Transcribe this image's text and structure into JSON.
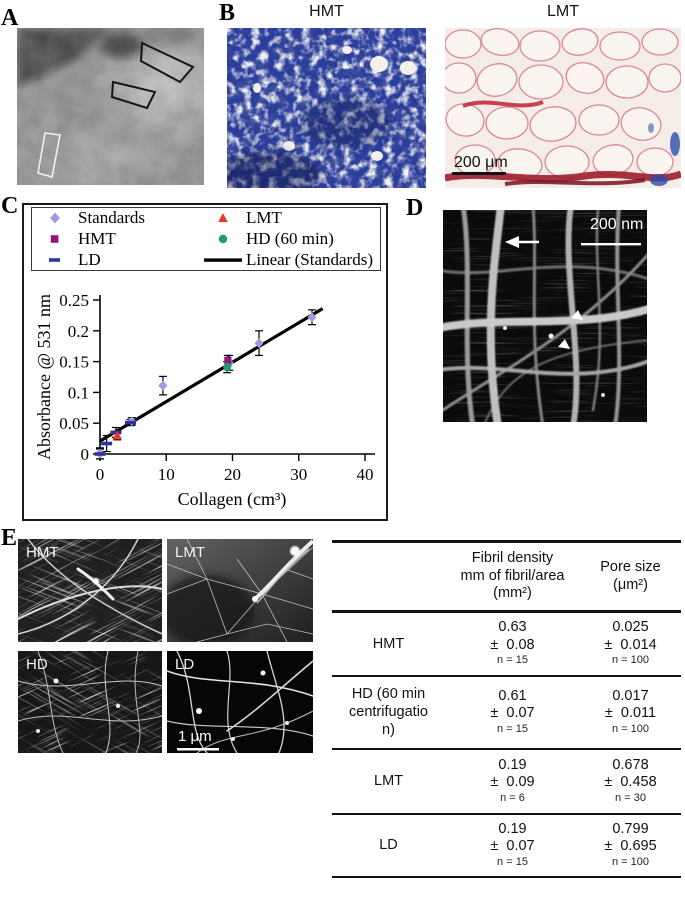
{
  "panels": {
    "a": {
      "label": "A"
    },
    "b": {
      "label": "B",
      "left_title": "HMT",
      "right_title": "LMT",
      "scale_bar": "200 μm"
    },
    "c": {
      "label": "C"
    },
    "d": {
      "label": "D",
      "scale_bar": "200 nm"
    },
    "e": {
      "label": "E",
      "tiles": [
        {
          "label": "HMT"
        },
        {
          "label": "LMT"
        },
        {
          "label": "HD"
        },
        {
          "label": "LD"
        }
      ],
      "scale_bar": "1 μm"
    }
  },
  "chart_data": {
    "type": "scatter",
    "title": "",
    "xlabel": "Collagen (cm³)",
    "ylabel": "Absorbance @ 531 nm",
    "xlim": [
      0,
      40
    ],
    "ylim": [
      0,
      0.25
    ],
    "xticks": [
      "0",
      "10",
      "20",
      "30",
      "40"
    ],
    "yticks": [
      "0",
      "0.05",
      "0.1",
      "0.15",
      "0.2",
      "0.25"
    ],
    "grid": false,
    "legend_position": "top",
    "legend": [
      {
        "name": "Standards",
        "marker": "diamond",
        "color": "#9b9bdf"
      },
      {
        "name": "HMT",
        "marker": "square",
        "color": "#8f1677"
      },
      {
        "name": "LD",
        "marker": "dash",
        "color": "#32329b"
      },
      {
        "name": "LMT",
        "marker": "triangle",
        "color": "#e6392e"
      },
      {
        "name": "HD (60 min)",
        "marker": "circle",
        "color": "#1f9c6e"
      },
      {
        "name": "Linear (Standards)",
        "marker": "line",
        "color": "#000000"
      }
    ],
    "series": [
      {
        "name": "Standards",
        "marker": "diamond",
        "color": "#9b9bdf",
        "points": [
          {
            "x": 0,
            "y": 0.001,
            "err": 0.009
          },
          {
            "x": 4.8,
            "y": 0.053,
            "err": 0.006
          },
          {
            "x": 9.5,
            "y": 0.111,
            "err": 0.015
          },
          {
            "x": 19.5,
            "y": 0.148,
            "err": 0.012
          },
          {
            "x": 24,
            "y": 0.18,
            "err": 0.02
          },
          {
            "x": 32,
            "y": 0.222,
            "err": 0.012
          }
        ]
      },
      {
        "name": "HMT",
        "marker": "square",
        "color": "#8f1677",
        "points": [
          {
            "x": 19.3,
            "y": 0.152,
            "err": 0.008
          }
        ]
      },
      {
        "name": "LD",
        "marker": "dash",
        "color": "#32329b",
        "points": [
          {
            "x": 0,
            "y": 0.0,
            "err": 0.008
          },
          {
            "x": 1,
            "y": 0.017,
            "err": 0.013
          },
          {
            "x": 2.4,
            "y": 0.035,
            "err": 0.008
          },
          {
            "x": 4.6,
            "y": 0.051,
            "err": 0.005
          }
        ]
      },
      {
        "name": "LMT",
        "marker": "triangle",
        "color": "#e6392e",
        "points": [
          {
            "x": 2.6,
            "y": 0.03,
            "err": 0.007
          }
        ]
      },
      {
        "name": "HD (60 min)",
        "marker": "circle",
        "color": "#1f9c6e",
        "points": [
          {
            "x": 19.2,
            "y": 0.141,
            "err": 0.009
          }
        ]
      }
    ],
    "fit_line": {
      "label": "Linear (Standards)",
      "x1": 0,
      "y1": 0.021,
      "x2": 33.6,
      "y2": 0.236
    }
  },
  "table": {
    "headers": {
      "rowhead": "",
      "fibril": "Fibril density\nmm of fibril/area\n(mm²)",
      "pore": "Pore size\n(μm²)"
    },
    "rows": [
      {
        "label": "HMT",
        "fibril": {
          "v": "0.63",
          "pm": "± 0.08",
          "n": "n = 15"
        },
        "pore": {
          "v": "0.025",
          "pm": "± 0.014",
          "n": "n = 100"
        }
      },
      {
        "label": "HD (60 min\ncentrifugatio\nn)",
        "fibril": {
          "v": "0.61",
          "pm": "± 0.07",
          "n": "n = 15"
        },
        "pore": {
          "v": "0.017",
          "pm": "± 0.011",
          "n": "n = 100"
        }
      },
      {
        "label": "LMT",
        "fibril": {
          "v": "0.19",
          "pm": "± 0.09",
          "n": "n = 6"
        },
        "pore": {
          "v": "0.678",
          "pm": "± 0.458",
          "n": "n = 30"
        }
      },
      {
        "label": "LD",
        "fibril": {
          "v": "0.19",
          "pm": "± 0.07",
          "n": "n = 15"
        },
        "pore": {
          "v": "0.799",
          "pm": "± 0.695",
          "n": "n = 100"
        }
      }
    ]
  }
}
